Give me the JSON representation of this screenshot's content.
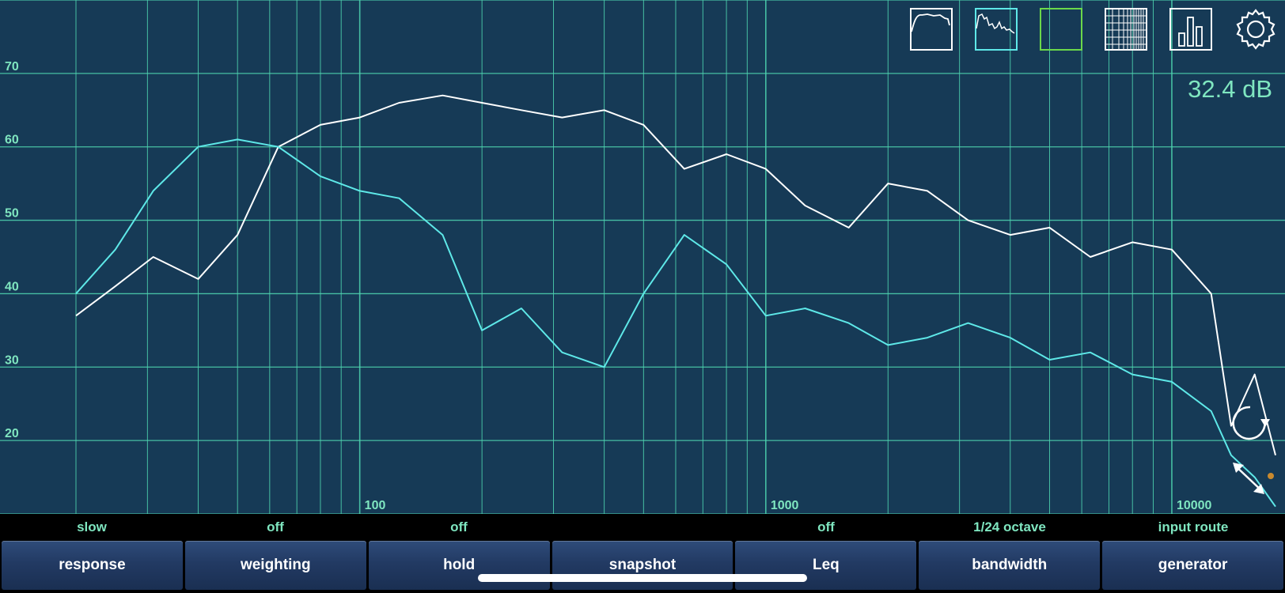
{
  "level_readout": "32.4 dB",
  "y_axis_labels": [
    {
      "value": 70,
      "text": "70"
    },
    {
      "value": 60,
      "text": "60"
    },
    {
      "value": 50,
      "text": "50"
    },
    {
      "value": 40,
      "text": "40"
    },
    {
      "value": 30,
      "text": "30"
    },
    {
      "value": 20,
      "text": "20"
    }
  ],
  "x_axis_labels": [
    {
      "value": 100,
      "text": "100"
    },
    {
      "value": 1000,
      "text": "1000"
    },
    {
      "value": 10000,
      "text": "10000"
    }
  ],
  "controls": [
    {
      "status": "slow",
      "label": "response"
    },
    {
      "status": "off",
      "label": "weighting"
    },
    {
      "status": "off",
      "label": "hold"
    },
    {
      "status": "",
      "label": "snapshot"
    },
    {
      "status": "off",
      "label": "Leq"
    },
    {
      "status": "1/24 octave",
      "label": "bandwidth"
    },
    {
      "status": "input route",
      "label": "generator"
    }
  ],
  "toolbar_icons": [
    "spectrum-white-icon",
    "spectrum-cyan-icon",
    "blank-view-icon",
    "grid-icon",
    "bar-graph-icon",
    "gear-icon"
  ],
  "colors": {
    "background": "#163a56",
    "grid": "#4fd6b0",
    "trace_white": "#ffffff",
    "trace_cyan": "#5ee8e8",
    "label": "#7fe6c0"
  },
  "chart_data": {
    "type": "line",
    "x_scale": "log",
    "xlim": [
      13,
      19000
    ],
    "ylim": [
      10,
      80
    ],
    "grid": true,
    "series": [
      {
        "x": [
          20,
          25,
          31,
          40,
          50,
          63,
          80,
          100,
          125,
          160,
          200,
          250,
          315,
          400,
          500,
          630,
          800,
          1000,
          1250,
          1600,
          2000,
          2500,
          3150,
          4000,
          5000,
          6300,
          8000,
          10000,
          12500,
          14000,
          16000,
          18000
        ],
        "y": [
          37,
          41,
          45,
          42,
          48,
          60,
          63,
          64,
          66,
          67,
          66,
          65,
          64,
          65,
          63,
          57,
          59,
          57,
          52,
          49,
          55,
          54,
          50,
          48,
          49,
          45,
          47,
          46,
          40,
          22,
          29,
          18
        ]
      },
      {
        "x": [
          20,
          25,
          31,
          40,
          50,
          63,
          80,
          100,
          125,
          160,
          200,
          250,
          315,
          400,
          500,
          630,
          800,
          1000,
          1250,
          1600,
          2000,
          2500,
          3150,
          4000,
          5000,
          6300,
          8000,
          10000,
          12500,
          14000,
          16000,
          18000
        ],
        "y": [
          40,
          46,
          54,
          60,
          61,
          60,
          56,
          54,
          53,
          48,
          35,
          38,
          32,
          30,
          40,
          48,
          44,
          37,
          38,
          36,
          33,
          34,
          36,
          34,
          31,
          32,
          29,
          28,
          24,
          18,
          15,
          11
        ]
      }
    ]
  }
}
